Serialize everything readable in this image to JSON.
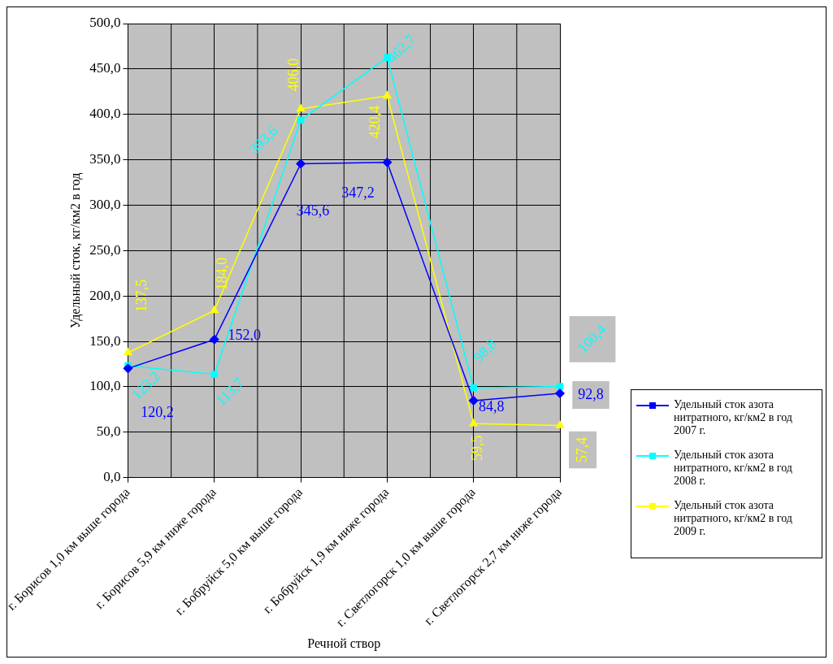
{
  "chart_data": {
    "type": "line",
    "xlabel": "Речной створ",
    "ylabel": "Удельный сток, кг/км2 в год",
    "categories": [
      "г. Борисов 1,0 км выше города",
      "г. Борисов 5,9 км ниже города",
      "г. Бобруйск 5,0 км выше города",
      "г. Бобруйск 1,9 км ниже города",
      "г. Светлогорск 1,0 км выше города",
      "г. Светлогорск 2,7 км ниже города"
    ],
    "series": [
      {
        "name": "Удельный сток азота нитратного, кг/км2 в год 2007 г.",
        "color": "#0000ff",
        "marker": "diamond",
        "values": [
          120.2,
          152.0,
          345.6,
          347.2,
          84.8,
          92.8
        ],
        "value_labels": [
          "120,2",
          "152,0",
          "345,6",
          "347,2",
          "84,8",
          "92,8"
        ]
      },
      {
        "name": "Удельный сток азота нитратного, кг/км2 в год 2008 г.",
        "color": "#00ffff",
        "marker": "square",
        "values": [
          123.2,
          113.7,
          393.6,
          462.7,
          98.8,
          100.4
        ],
        "value_labels": [
          "123,2",
          "113,7",
          "393,6",
          "462,7",
          "98,8",
          "100,4"
        ]
      },
      {
        "name": "Удельный сток азота нитратного, кг/км2 в год 2009 г.",
        "color": "#ffff00",
        "marker": "triangle",
        "values": [
          137.5,
          184.0,
          406.0,
          420.4,
          59.5,
          57.4
        ],
        "value_labels": [
          "137,5",
          "184,0",
          "406,0",
          "420,4",
          "59,5",
          "57,4"
        ]
      }
    ],
    "ylim": [
      0,
      500
    ],
    "yticks": [
      {
        "value": 0,
        "label": "0,0"
      },
      {
        "value": 50,
        "label": "50,0"
      },
      {
        "value": 100,
        "label": "100,0"
      },
      {
        "value": 150,
        "label": "150,0"
      },
      {
        "value": 200,
        "label": "200,0"
      },
      {
        "value": 250,
        "label": "250,0"
      },
      {
        "value": 300,
        "label": "300,0"
      },
      {
        "value": 350,
        "label": "350,0"
      },
      {
        "value": 400,
        "label": "400,0"
      },
      {
        "value": 450,
        "label": "450,0"
      },
      {
        "value": 500,
        "label": "500,0"
      }
    ],
    "grid": true,
    "legend": "right",
    "line_style": "solid"
  }
}
